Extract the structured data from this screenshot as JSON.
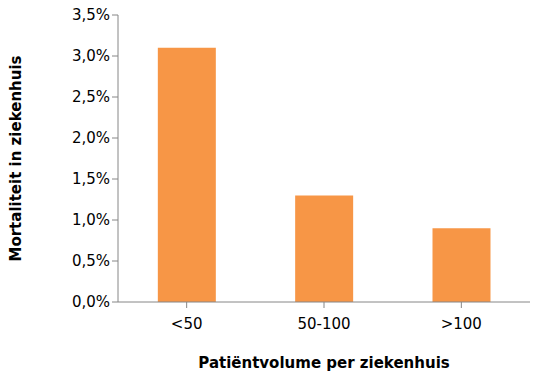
{
  "chart_data": {
    "type": "bar",
    "x_label": "Patiëntvolume per ziekenhuis",
    "y_label": "Mortaliteit in ziekenhuis",
    "categories": [
      "<50",
      "50-100",
      ">100"
    ],
    "values": [
      3.1,
      1.3,
      0.9
    ],
    "color": "#f79646",
    "ylim": [
      0,
      3.5
    ],
    "yticks": [
      {
        "value": 0,
        "label": "0,0%"
      },
      {
        "value": 0.5,
        "label": "0,5%"
      },
      {
        "value": 1,
        "label": "1,0%"
      },
      {
        "value": 1.5,
        "label": "1,5%"
      },
      {
        "value": 2,
        "label": "2,0%"
      },
      {
        "value": 2.5,
        "label": "2,5%"
      },
      {
        "value": 3,
        "label": "3,0%"
      },
      {
        "value": 3.5,
        "label": "3,5%"
      }
    ],
    "grid": false
  }
}
